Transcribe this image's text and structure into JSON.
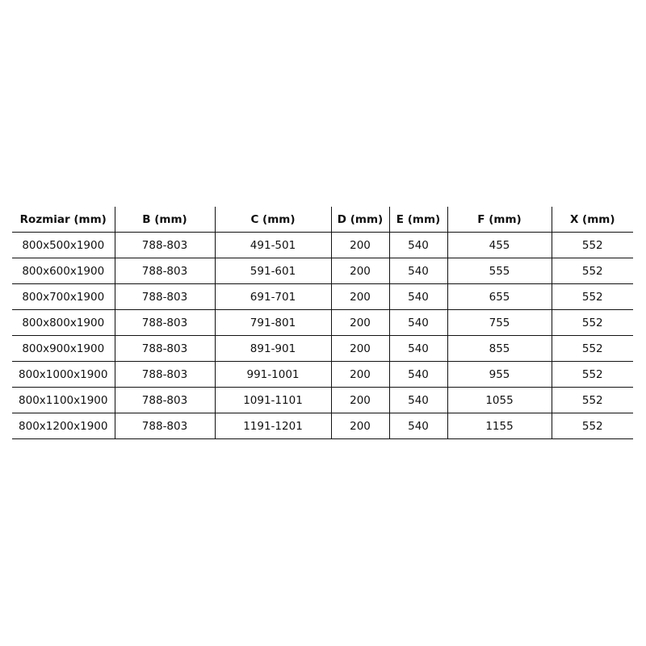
{
  "table": {
    "headers": [
      "Rozmiar (mm)",
      "B (mm)",
      "C (mm)",
      "D (mm)",
      "E (mm)",
      "F (mm)",
      "X (mm)"
    ],
    "rows": [
      [
        "800x500x1900",
        "788-803",
        "491-501",
        "200",
        "540",
        "455",
        "552"
      ],
      [
        "800x600x1900",
        "788-803",
        "591-601",
        "200",
        "540",
        "555",
        "552"
      ],
      [
        "800x700x1900",
        "788-803",
        "691-701",
        "200",
        "540",
        "655",
        "552"
      ],
      [
        "800x800x1900",
        "788-803",
        "791-801",
        "200",
        "540",
        "755",
        "552"
      ],
      [
        "800x900x1900",
        "788-803",
        "891-901",
        "200",
        "540",
        "855",
        "552"
      ],
      [
        "800x1000x1900",
        "788-803",
        "991-1001",
        "200",
        "540",
        "955",
        "552"
      ],
      [
        "800x1100x1900",
        "788-803",
        "1091-1101",
        "200",
        "540",
        "1055",
        "552"
      ],
      [
        "800x1200x1900",
        "788-803",
        "1191-1201",
        "200",
        "540",
        "1155",
        "552"
      ]
    ]
  }
}
